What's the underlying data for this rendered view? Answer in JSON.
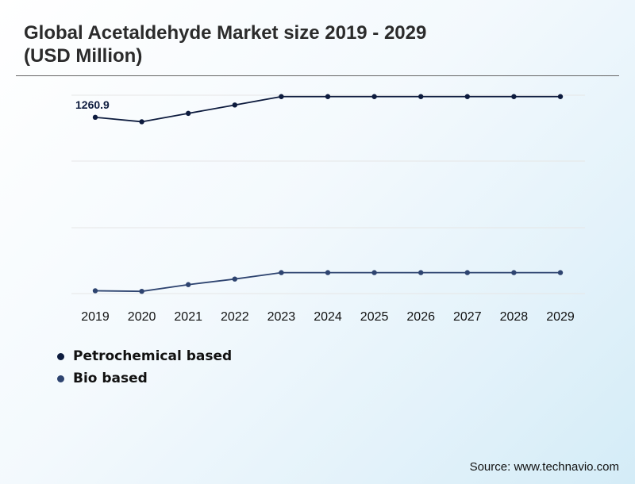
{
  "title": {
    "line1": "Global Acetaldehyde Market size 2019 - 2029",
    "line2": "(USD Million)"
  },
  "source": "Source: www.technavio.com",
  "colors": {
    "petrochemical": "#0d1b3e",
    "bio": "#2e4470",
    "grid": "#e6e6e6"
  },
  "chart_data": {
    "type": "line",
    "title": "Global Acetaldehyde Market size 2019 - 2029 (USD Million)",
    "categories": [
      "2019",
      "2020",
      "2021",
      "2022",
      "2023",
      "2024",
      "2025",
      "2026",
      "2027",
      "2028",
      "2029"
    ],
    "series": [
      {
        "name": "Petrochemical based",
        "values": [
          1260.9,
          1245,
          1275,
          1305,
          1335,
          1335,
          1335,
          1335,
          1335,
          1335,
          1335
        ]
      },
      {
        "name": "Bio based",
        "values": [
          640,
          638,
          662,
          682,
          705,
          705,
          705,
          705,
          705,
          705,
          705
        ]
      }
    ],
    "data_labels": [
      {
        "series": 0,
        "index": 0,
        "text": "1260.9"
      }
    ],
    "ylim": [
      630,
      1340
    ],
    "y_axis_visible": false,
    "grid": true,
    "legend_position": "bottom-left"
  }
}
